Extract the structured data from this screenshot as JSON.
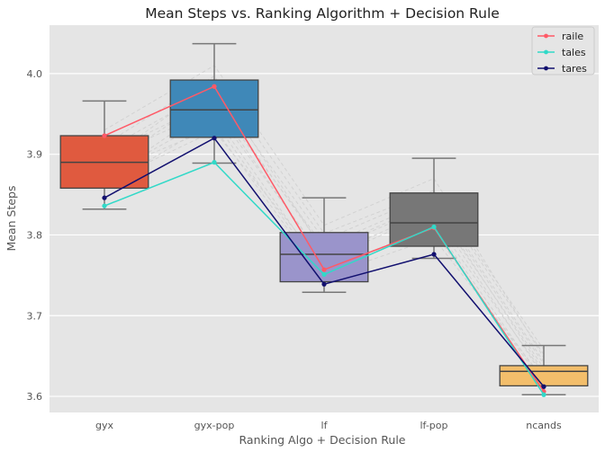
{
  "chart_data": {
    "type": "box",
    "title": "Mean Steps vs. Ranking Algorithm + Decision Rule",
    "xlabel": "Ranking Algo + Decision Rule",
    "ylabel": "Mean Steps",
    "categories": [
      "gyx",
      "gyx-pop",
      "lf",
      "lf-pop",
      "ncands"
    ],
    "ylim": [
      3.58,
      4.06
    ],
    "yticks": [
      3.6,
      3.7,
      3.8,
      3.9,
      4.0
    ],
    "ytick_labels": [
      "3.6",
      "3.7",
      "3.8",
      "3.9",
      "4.0"
    ],
    "grid": true,
    "legend_position": "top-right",
    "boxes": [
      {
        "category": "gyx",
        "whisker_low": 3.832,
        "q1": 3.858,
        "median": 3.89,
        "q3": 3.923,
        "whisker_high": 3.966,
        "color": "#E05A3F"
      },
      {
        "category": "gyx-pop",
        "whisker_low": 3.889,
        "q1": 3.921,
        "median": 3.955,
        "q3": 3.992,
        "whisker_high": 4.037,
        "color": "#3F88B8"
      },
      {
        "category": "lf",
        "whisker_low": 3.729,
        "q1": 3.742,
        "median": 3.776,
        "q3": 3.803,
        "whisker_high": 3.846,
        "color": "#9A94CB"
      },
      {
        "category": "lf-pop",
        "whisker_low": 3.771,
        "q1": 3.786,
        "median": 3.815,
        "q3": 3.852,
        "whisker_high": 3.895,
        "color": "#777777"
      },
      {
        "category": "ncands",
        "whisker_low": 3.602,
        "q1": 3.613,
        "median": 3.631,
        "q3": 3.638,
        "whisker_high": 3.663,
        "color": "#F3BE6B"
      }
    ],
    "series": [
      {
        "name": "raile",
        "color": "#FF5A67",
        "values": [
          3.923,
          3.984,
          3.757,
          3.809,
          3.606
        ]
      },
      {
        "name": "tales",
        "color": "#31D9C8",
        "values": [
          3.836,
          3.89,
          3.751,
          3.81,
          3.602
        ]
      },
      {
        "name": "tares",
        "color": "#12106F",
        "values": [
          3.846,
          3.92,
          3.739,
          3.776,
          3.612
        ]
      }
    ],
    "background_series": {
      "color": "#d2d2d2",
      "values": [
        [
          3.885,
          3.973,
          3.781,
          3.841,
          3.64
        ],
        [
          3.868,
          3.962,
          3.768,
          3.829,
          3.624
        ],
        [
          3.905,
          3.981,
          3.794,
          3.852,
          3.652
        ],
        [
          3.872,
          3.948,
          3.755,
          3.812,
          3.617
        ],
        [
          3.912,
          3.997,
          3.802,
          3.855,
          3.658
        ],
        [
          3.859,
          3.941,
          3.749,
          3.796,
          3.621
        ],
        [
          3.896,
          3.955,
          3.771,
          3.833,
          3.635
        ],
        [
          3.93,
          4.01,
          3.812,
          3.87,
          3.648
        ],
        [
          3.877,
          3.933,
          3.745,
          3.818,
          3.628
        ],
        [
          3.9,
          3.966,
          3.786,
          3.845,
          3.643
        ],
        [
          3.864,
          3.929,
          3.762,
          3.804,
          3.615
        ],
        [
          3.891,
          3.989,
          3.779,
          3.838,
          3.63
        ]
      ]
    }
  }
}
